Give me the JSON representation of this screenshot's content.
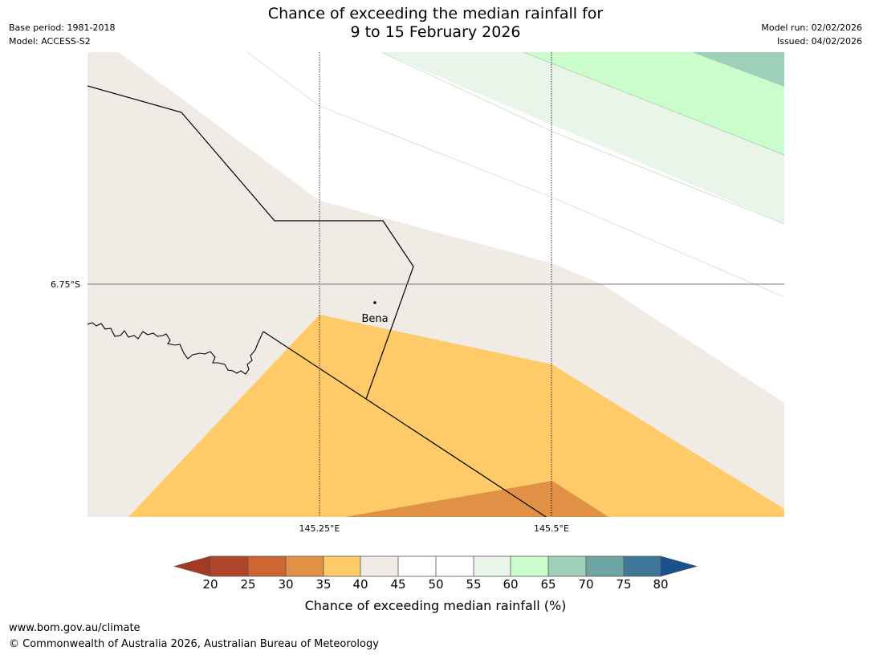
{
  "header": {
    "title_line1": "Chance of exceeding the median rainfall for",
    "title_line2": "9 to 15 February 2026",
    "base_period": "Base period: 1981-2018",
    "model": "Model: ACCESS-S2",
    "model_run": "Model run: 02/02/2026",
    "issued": "Issued: 04/02/2026"
  },
  "map": {
    "latitude_label": "6.75°S",
    "longitude_labels": [
      "145.25°E",
      "145.5°E"
    ],
    "place_label": "Bena",
    "region_colors": {
      "band_20_25": "#b0462a",
      "band_25_30": "#cf6530",
      "band_30_35": "#e09145",
      "band_35_40": "#fecb68",
      "band_40_45": "#f0ebe5",
      "band_45_55": "#ffffff",
      "band_55_60": "#eaf5ea",
      "band_60_65": "#cbfccb",
      "band_65_70": "#9ecfb8"
    }
  },
  "colorbar": {
    "ticks": [
      "20",
      "25",
      "30",
      "35",
      "40",
      "45",
      "50",
      "55",
      "60",
      "65",
      "70",
      "75",
      "80"
    ],
    "colors": [
      "#a33a25",
      "#b0462a",
      "#cf6530",
      "#e09145",
      "#fecb68",
      "#f0ebe5",
      "#ffffff",
      "#ffffff",
      "#eaf5ea",
      "#cbfccb",
      "#9ecfb8",
      "#6fa5a4",
      "#3f7799",
      "#1a508c"
    ],
    "caption": "Chance of exceeding median rainfall (%)"
  },
  "footer": {
    "url": "www.bom.gov.au/climate",
    "copyright": "© Commonwealth of Australia 2026, Australian Bureau of Meteorology"
  }
}
